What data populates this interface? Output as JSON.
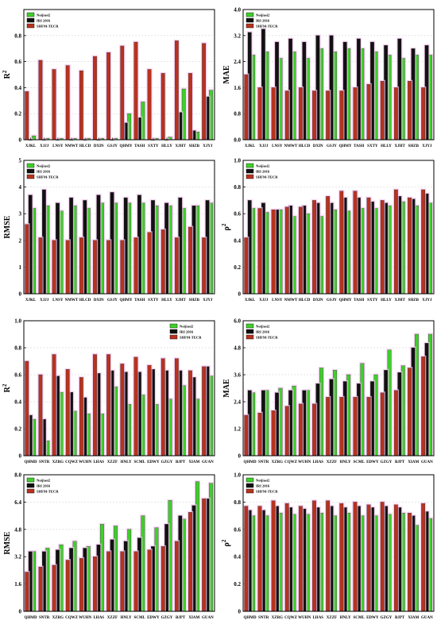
{
  "chart_data": [
    {
      "type": "bar",
      "ylabel": "R",
      "ylabel_sup": "2",
      "categories": [
        "XJKL",
        "XJJJ",
        "LNSY",
        "NMWT",
        "HLCD",
        "DXIN",
        "GSJY",
        "QHMY",
        "TASH",
        "SXTY",
        "HLLY",
        "XJHT",
        "SHZB",
        "XJYJ"
      ],
      "ylim": [
        0,
        1.0
      ],
      "ticks": [
        "0",
        "0.2",
        "0.4",
        "0.6",
        "0.8"
      ],
      "tick_values": [
        0,
        0.2,
        0.4,
        0.6,
        0.8
      ],
      "legend": "top-left",
      "series": [
        {
          "name": "Noijiasi2",
          "values": [
            0.03,
            0.01,
            0.01,
            0.01,
            0.01,
            0.01,
            0.01,
            0.2,
            0.29,
            0.01,
            0.02,
            0.39,
            0.06,
            0.38
          ]
        },
        {
          "name": "IRI 2016",
          "values": [
            0.0,
            0.0,
            0.0,
            0.0,
            0.0,
            0.0,
            0.0,
            0.13,
            0.17,
            0.0,
            0.0,
            0.21,
            0.07,
            0.33
          ]
        },
        {
          "name": "SHFM-TECR",
          "values": [
            0.37,
            0.61,
            0.54,
            0.57,
            0.53,
            0.64,
            0.67,
            0.72,
            0.75,
            0.54,
            0.51,
            0.76,
            0.51,
            0.74
          ]
        }
      ]
    },
    {
      "type": "bar",
      "ylabel": "MAE",
      "ylabel_sup": "",
      "categories": [
        "XJKL",
        "XJJJ",
        "LNSY",
        "NMWT",
        "HLCD",
        "DXIN",
        "GSJY",
        "QHMY",
        "TASH",
        "SXTY",
        "HLLY",
        "XJHT",
        "SHZB",
        "XJYJ"
      ],
      "ylim": [
        0,
        4.0
      ],
      "ticks": [
        "0.0",
        "0.8",
        "1.6",
        "2.4",
        "3.2",
        "4.0"
      ],
      "tick_values": [
        0,
        0.8,
        1.6,
        2.4,
        3.2,
        4.0
      ],
      "legend": "top-left",
      "series": [
        {
          "name": "Noijiasi2",
          "values": [
            2.6,
            2.7,
            2.5,
            2.7,
            2.5,
            2.8,
            2.7,
            2.8,
            2.8,
            2.7,
            2.6,
            2.5,
            2.6,
            2.6
          ]
        },
        {
          "name": "IRI 2016",
          "values": [
            3.3,
            3.4,
            3.0,
            3.1,
            3.0,
            3.2,
            3.2,
            3.0,
            3.1,
            3.0,
            2.9,
            3.1,
            2.8,
            2.9
          ]
        },
        {
          "name": "SHFM-TECR",
          "values": [
            2.0,
            1.6,
            1.6,
            1.5,
            1.6,
            1.5,
            1.5,
            1.5,
            1.6,
            1.7,
            1.8,
            1.6,
            1.8,
            1.6
          ]
        }
      ]
    },
    {
      "type": "bar",
      "ylabel": "RMSE",
      "ylabel_sup": "",
      "categories": [
        "XJKL",
        "XJJJ",
        "LNSY",
        "NMWT",
        "HLCD",
        "DXIN",
        "GSJY",
        "QHMY",
        "TASH",
        "SXTY",
        "HLLY",
        "XJHT",
        "SHZB",
        "XJYJ"
      ],
      "ylim": [
        0,
        5.0
      ],
      "ticks": [
        "0",
        "1",
        "2",
        "3",
        "4",
        "5"
      ],
      "tick_values": [
        0,
        1,
        2,
        3,
        4,
        5
      ],
      "legend": "top-left",
      "series": [
        {
          "name": "Noijiasi2",
          "values": [
            3.2,
            3.3,
            3.1,
            3.3,
            3.2,
            3.4,
            3.4,
            3.4,
            3.4,
            3.3,
            3.3,
            3.2,
            3.3,
            3.4
          ]
        },
        {
          "name": "IRI 2016",
          "values": [
            3.7,
            3.9,
            3.4,
            3.6,
            3.5,
            3.7,
            3.8,
            3.6,
            3.7,
            3.5,
            3.4,
            3.6,
            3.3,
            3.5
          ]
        },
        {
          "name": "SHFM-TECR",
          "values": [
            2.6,
            2.1,
            2.0,
            2.0,
            2.1,
            2.0,
            2.0,
            2.0,
            2.1,
            2.3,
            2.4,
            2.1,
            2.5,
            2.1
          ]
        }
      ]
    },
    {
      "type": "bar",
      "ylabel": "ρ",
      "ylabel_sup": "2",
      "categories": [
        "XJKL",
        "XJJJ",
        "LNSY",
        "NMWT",
        "HLCD",
        "DXIN",
        "GSJY",
        "QHMY",
        "TASH",
        "SXTY",
        "HLLY",
        "XJHT",
        "SHZB",
        "XJYJ"
      ],
      "ylim": [
        0,
        1.0
      ],
      "ticks": [
        "0",
        "0.2",
        "0.4",
        "0.6",
        "0.8",
        "1.0"
      ],
      "tick_values": [
        0,
        0.2,
        0.4,
        0.6,
        0.8,
        1.0
      ],
      "legend": "top-left",
      "series": [
        {
          "name": "Noijiasi2",
          "values": [
            0.64,
            0.61,
            0.63,
            0.58,
            0.6,
            0.58,
            0.63,
            0.62,
            0.64,
            0.64,
            0.66,
            0.69,
            0.66,
            0.68
          ]
        },
        {
          "name": "IRI 2016",
          "values": [
            0.7,
            0.68,
            0.63,
            0.66,
            0.66,
            0.68,
            0.68,
            0.72,
            0.72,
            0.69,
            0.68,
            0.73,
            0.71,
            0.75
          ]
        },
        {
          "name": "SHFM-TECR",
          "values": [
            0.42,
            0.64,
            0.63,
            0.65,
            0.65,
            0.7,
            0.73,
            0.77,
            0.77,
            0.72,
            0.7,
            0.78,
            0.72,
            0.78
          ]
        }
      ]
    },
    {
      "type": "bar",
      "ylabel": "R",
      "ylabel_sup": "2",
      "categories": [
        "QHMD",
        "SNTR",
        "XZRG",
        "CQWZ",
        "WUHN",
        "LHAS",
        "XZZF",
        "HNLY",
        "SCML",
        "EDWY",
        "GZGY",
        "BJPT",
        "XIAM",
        "GUAN"
      ],
      "ylim": [
        0,
        1.0
      ],
      "ticks": [
        "0",
        "0.2",
        "0.4",
        "0.6",
        "0.8",
        "1.0"
      ],
      "tick_values": [
        0,
        0.2,
        0.4,
        0.6,
        0.8,
        1.0
      ],
      "legend": "top-right",
      "series": [
        {
          "name": "Noijiasi2",
          "values": [
            0.27,
            0.11,
            0.47,
            0.33,
            0.31,
            0.31,
            0.51,
            0.38,
            0.45,
            0.38,
            0.42,
            0.52,
            0.42,
            0.59
          ]
        },
        {
          "name": "IRI 2016",
          "values": [
            0.3,
            0.27,
            0.59,
            0.47,
            0.43,
            0.61,
            0.63,
            0.62,
            0.62,
            0.64,
            0.63,
            0.63,
            0.58,
            0.66
          ]
        },
        {
          "name": "SHFM-TECR",
          "values": [
            0.7,
            0.6,
            0.75,
            0.64,
            0.58,
            0.75,
            0.75,
            0.68,
            0.73,
            0.67,
            0.72,
            0.72,
            0.63,
            0.66
          ]
        }
      ]
    },
    {
      "type": "bar",
      "ylabel": "MAE",
      "ylabel_sup": "",
      "categories": [
        "QHMD",
        "SNTR",
        "XZRG",
        "CQWZ",
        "WUHN",
        "LHAS",
        "XZZF",
        "HNLY",
        "SCML",
        "EDWY",
        "GZGY",
        "BJPT",
        "XIAM",
        "GUAN"
      ],
      "ylim": [
        0,
        6.0
      ],
      "ticks": [
        "0",
        "1.2",
        "2.4",
        "3.6",
        "4.8",
        "6.0"
      ],
      "tick_values": [
        0,
        1.2,
        2.4,
        3.6,
        4.8,
        6.0
      ],
      "legend": "top-left",
      "series": [
        {
          "name": "Noijiasi2",
          "values": [
            2.8,
            2.9,
            3.0,
            3.1,
            2.9,
            3.9,
            3.8,
            3.6,
            4.1,
            3.6,
            4.7,
            4.0,
            5.4,
            5.4
          ]
        },
        {
          "name": "IRI 2016",
          "values": [
            2.9,
            2.9,
            2.8,
            2.9,
            2.9,
            3.2,
            3.4,
            3.3,
            3.2,
            3.3,
            3.8,
            3.7,
            4.8,
            5.0
          ]
        },
        {
          "name": "SHFM-TECR",
          "values": [
            1.8,
            1.9,
            2.0,
            2.2,
            2.3,
            2.3,
            2.6,
            2.6,
            2.6,
            2.6,
            2.8,
            2.9,
            3.9,
            4.4
          ]
        }
      ]
    },
    {
      "type": "bar",
      "ylabel": "RMSE",
      "ylabel_sup": "",
      "categories": [
        "QHMD",
        "SNTR",
        "XZRG",
        "CQWZ",
        "WUHN",
        "LHAS",
        "XZZF",
        "HNLY",
        "SCML",
        "EDWY",
        "GZGY",
        "BJPT",
        "XIAM",
        "GUAN"
      ],
      "ylim": [
        0,
        8.0
      ],
      "ticks": [
        "0",
        "1.6",
        "3.2",
        "4.8",
        "6.4",
        "8.0"
      ],
      "tick_values": [
        0,
        1.6,
        3.2,
        4.8,
        6.4,
        8.0
      ],
      "legend": "top-left",
      "series": [
        {
          "name": "Noijiasi2",
          "values": [
            3.5,
            3.7,
            3.9,
            4.1,
            3.8,
            5.1,
            5.0,
            4.8,
            5.6,
            4.9,
            6.5,
            5.4,
            7.6,
            7.5
          ]
        },
        {
          "name": "IRI 2016",
          "values": [
            3.5,
            3.5,
            3.6,
            3.7,
            3.7,
            3.9,
            4.2,
            4.1,
            4.3,
            3.8,
            5.1,
            5.6,
            6.2,
            6.6
          ]
        },
        {
          "name": "SHFM-TECR",
          "values": [
            2.3,
            2.6,
            2.7,
            3.0,
            3.1,
            3.2,
            3.5,
            3.5,
            3.5,
            3.6,
            3.8,
            4.1,
            5.8,
            6.6
          ]
        }
      ]
    },
    {
      "type": "bar",
      "ylabel": "ρ",
      "ylabel_sup": "2",
      "categories": [
        "QHMD",
        "SNTR",
        "XZRG",
        "CQWZ",
        "WUHN",
        "LHAS",
        "XZZF",
        "HNLY",
        "SCML",
        "EDWY",
        "GZGY",
        "BJPT",
        "XIAM",
        "GUAN"
      ],
      "ylim": [
        0,
        1.0
      ],
      "ticks": [
        "0",
        "0.2",
        "0.4",
        "0.6",
        "0.8",
        "1.0"
      ],
      "tick_values": [
        0,
        0.2,
        0.4,
        0.6,
        0.8,
        1.0
      ],
      "legend": "top-left",
      "series": [
        {
          "name": "Noijiasi2",
          "values": [
            0.7,
            0.7,
            0.72,
            0.71,
            0.71,
            0.72,
            0.7,
            0.72,
            0.7,
            0.7,
            0.71,
            0.72,
            0.63,
            0.68
          ]
        },
        {
          "name": "IRI 2016",
          "values": [
            0.74,
            0.74,
            0.77,
            0.76,
            0.75,
            0.76,
            0.77,
            0.76,
            0.77,
            0.76,
            0.77,
            0.76,
            0.7,
            0.73
          ]
        },
        {
          "name": "SHFM-TECR",
          "values": [
            0.77,
            0.77,
            0.81,
            0.79,
            0.77,
            0.81,
            0.81,
            0.79,
            0.8,
            0.78,
            0.8,
            0.78,
            0.72,
            0.79
          ]
        }
      ]
    }
  ],
  "colors": {
    "Noijiasi2": "#3ecf2a",
    "IRI 2016": "#111111",
    "SHFM-TECR": "#b8321e",
    "halo": "#f4c6f0",
    "grid": "#cccccc"
  }
}
